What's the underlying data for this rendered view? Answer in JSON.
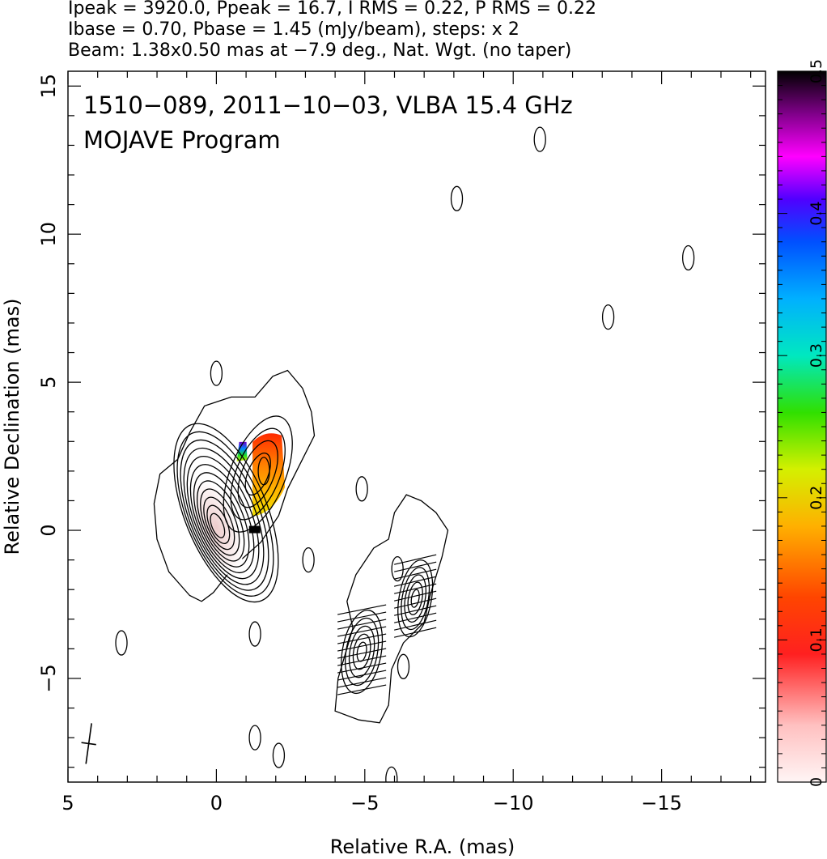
{
  "header": {
    "line1": "Ipeak = 3920.0, Ppeak = 16.7, I RMS = 0.22, P RMS = 0.22",
    "line2": "Ibase = 0.70, Pbase = 1.45 (mJy/beam), steps: x 2",
    "line3": "Beam: 1.38x0.50 mas at −7.9 deg., Nat. Wgt. (no taper)"
  },
  "chart_data": {
    "type": "heatmap",
    "title_line1": "1510−089, 2011−10−03, VLBA 15.4 GHz",
    "title_line2": "MOJAVE Program",
    "xlabel": "Relative R.A. (mas)",
    "ylabel": "Relative Declination (mas)",
    "xlim": [
      5.0,
      -18.5
    ],
    "ylim": [
      -8.5,
      15.5
    ],
    "x_ticks": [
      5,
      0,
      -5,
      -10,
      -15
    ],
    "x_tick_labels": [
      "5",
      "0",
      "−5",
      "−10",
      "−15"
    ],
    "y_ticks": [
      15,
      10,
      5,
      0,
      -5
    ],
    "y_tick_labels": [
      "15",
      "10",
      "5",
      "0",
      "−5"
    ],
    "colorbar": {
      "range": [
        0,
        0.5
      ],
      "ticks": [
        0,
        0.1,
        0.2,
        0.3,
        0.4,
        0.5
      ],
      "tick_labels": [
        "0",
        "0.1",
        "0.2",
        "0.3",
        "0.4",
        "0.5"
      ]
    },
    "core": {
      "x": 0.0,
      "y": 0.1
    },
    "contour_base_mJy": 0.7,
    "contour_step": 2,
    "jet_knot": {
      "x": -1.6,
      "y": 2.0
    },
    "western_knots": [
      {
        "x": -4.9,
        "y": -4.1
      },
      {
        "x": -6.7,
        "y": -2.3
      }
    ],
    "isolated_contours": [
      {
        "x": 0.0,
        "y": 5.3
      },
      {
        "x": -10.9,
        "y": 13.2
      },
      {
        "x": -8.1,
        "y": 11.2
      },
      {
        "x": -15.9,
        "y": 9.2
      },
      {
        "x": -13.2,
        "y": 7.2
      },
      {
        "x": -4.9,
        "y": 1.4
      },
      {
        "x": -3.1,
        "y": -1.0
      },
      {
        "x": -6.1,
        "y": -1.3
      },
      {
        "x": 3.2,
        "y": -3.8
      },
      {
        "x": -1.3,
        "y": -3.5
      },
      {
        "x": -6.3,
        "y": -4.6
      },
      {
        "x": -1.3,
        "y": -7.0
      },
      {
        "x": -2.1,
        "y": -7.6
      },
      {
        "x": -5.9,
        "y": -8.4
      }
    ],
    "beam": {
      "x": 4.3,
      "y": -7.2,
      "major_mas": 1.38,
      "minor_mas": 0.5,
      "pa_deg": -7.9
    }
  }
}
